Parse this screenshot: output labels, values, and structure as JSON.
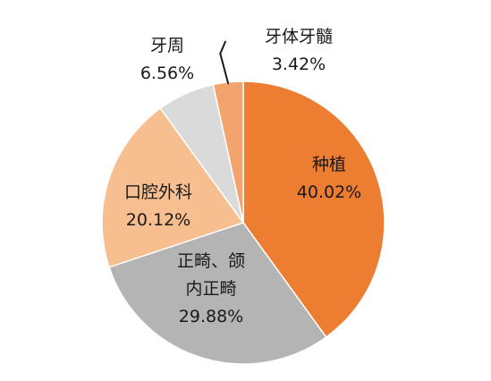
{
  "chart_data": {
    "type": "pie",
    "title": "",
    "start_angle_deg": 0,
    "direction": "clockwise",
    "slices": [
      {
        "name": "种植",
        "value": 40.02,
        "value_label": "40.02%",
        "color": "#ED7D31",
        "label_lines": [
          "种植",
          "40.02%"
        ]
      },
      {
        "name": "正畸、颌内正畸",
        "value": 29.88,
        "value_label": "29.88%",
        "color": "#B4B4B4",
        "label_lines": [
          "正畸、颌",
          "内正畸",
          "29.88%"
        ]
      },
      {
        "name": "口腔外科",
        "value": 20.12,
        "value_label": "20.12%",
        "color": "#F7BE90",
        "label_lines": [
          "口腔外科",
          "20.12%"
        ]
      },
      {
        "name": "牙周",
        "value": 6.56,
        "value_label": "6.56%",
        "color": "#DADADA",
        "label_lines": [
          "牙周",
          "6.56%"
        ]
      },
      {
        "name": "牙体牙髓",
        "value": 3.42,
        "value_label": "3.42%",
        "color": "#F2A46C",
        "label_lines": [
          "牙体牙髓",
          "3.42%"
        ]
      }
    ]
  }
}
